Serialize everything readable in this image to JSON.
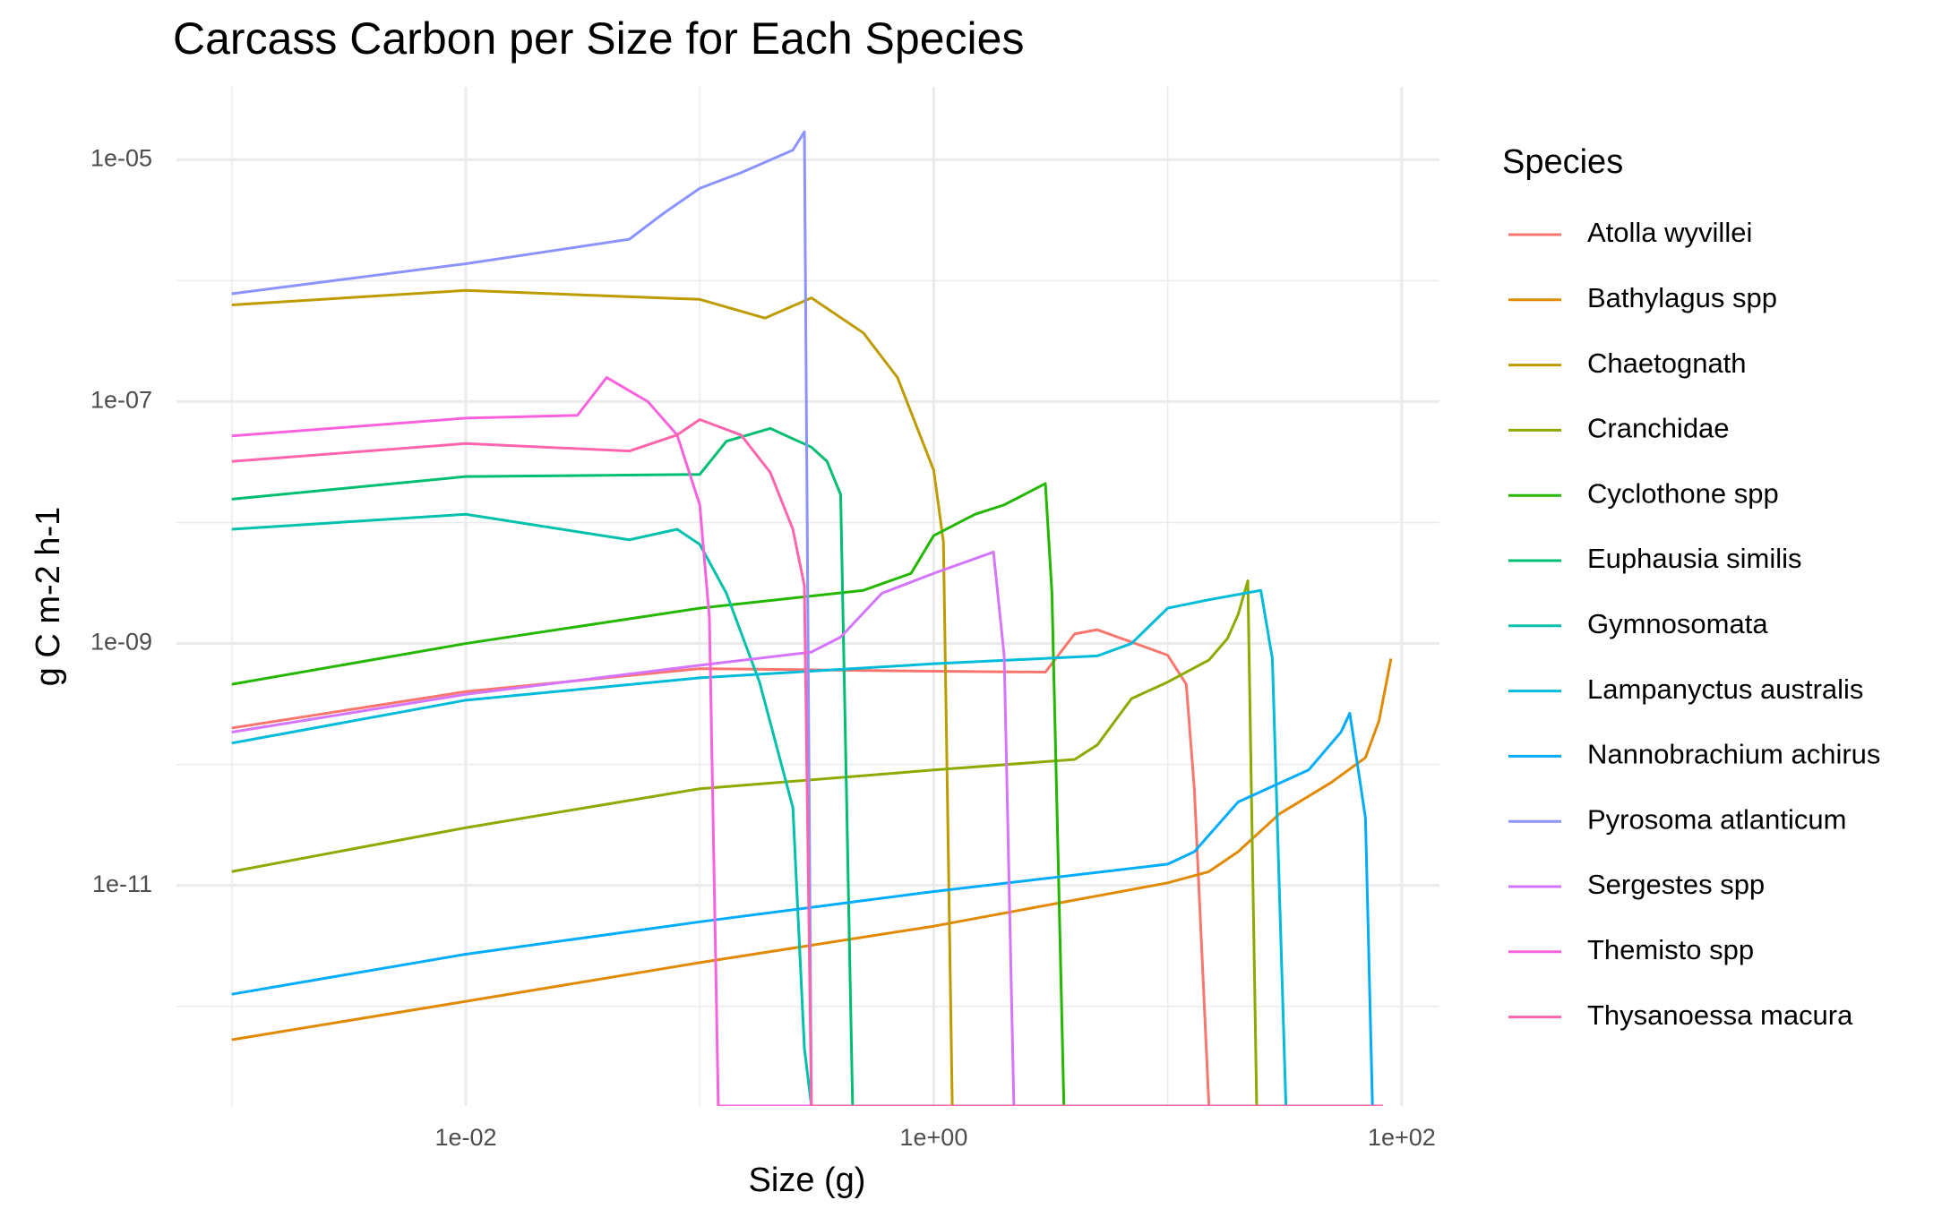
{
  "chart_data": {
    "type": "line",
    "title": "Carcass Carbon per Size for Each Species",
    "x_label": "Size (g)",
    "y_label": "g C m-2 h-1",
    "legend_title": "Species",
    "x_log": true,
    "y_log": true,
    "grid": true,
    "legend_position": "right",
    "xlim": [
      0.00058,
      145
    ],
    "ylim": [
      1.5e-13,
      4e-05
    ],
    "xticks": [
      {
        "value": 0.01,
        "label": "1e-02"
      },
      {
        "value": 1,
        "label": "1e+00"
      },
      {
        "value": 100,
        "label": "1e+02"
      }
    ],
    "yticks": [
      {
        "value": 1e-11,
        "label": "1e-11"
      },
      {
        "value": 1e-09,
        "label": "1e-09"
      },
      {
        "value": 1e-07,
        "label": "1e-07"
      },
      {
        "value": 1e-05,
        "label": "1e-05"
      }
    ],
    "x_minor_ticks": [
      0.001,
      0.1,
      10
    ],
    "y_minor_ticks": [
      1e-12,
      1e-10,
      1e-08,
      1e-06
    ],
    "series": [
      {
        "name": "Atolla wyvillei",
        "color": "#F8766D",
        "x": [
          0.001,
          0.01,
          0.1,
          1,
          3,
          4,
          5,
          10,
          12,
          13,
          15,
          83
        ],
        "values": [
          2e-10,
          4e-10,
          6.2e-10,
          5.9e-10,
          5.8e-10,
          1.2e-09,
          1.3e-09,
          8e-10,
          4.6e-10,
          6.2e-11,
          1.5e-13,
          1.5e-13
        ]
      },
      {
        "name": "Bathylagus spp",
        "color": "#E18A00",
        "x": [
          0.001,
          0.01,
          0.1,
          1,
          10,
          15,
          20,
          30,
          50,
          70,
          80,
          90
        ],
        "values": [
          5.3e-13,
          1.1e-12,
          2.3e-12,
          4.6e-12,
          1.05e-11,
          1.3e-11,
          1.9e-11,
          3.9e-11,
          7.1e-11,
          1.14e-10,
          2.3e-10,
          7.5e-10
        ]
      },
      {
        "name": "Chaetognath",
        "color": "#BE9C00",
        "x": [
          0.001,
          0.01,
          0.1,
          0.19,
          0.3,
          0.5,
          0.7,
          1,
          1.1,
          1.2,
          83
        ],
        "values": [
          6.3e-07,
          8.3e-07,
          7e-07,
          4.9e-07,
          7.2e-07,
          3.7e-07,
          1.58e-07,
          2.7e-08,
          6.9e-09,
          1.5e-13,
          1.5e-13
        ]
      },
      {
        "name": "Cranchidae",
        "color": "#8CAB00",
        "x": [
          0.001,
          0.01,
          0.1,
          1,
          4,
          5,
          7,
          10,
          15,
          18,
          20,
          22,
          24,
          83
        ],
        "values": [
          1.3e-11,
          3e-11,
          6.3e-11,
          9e-11,
          1.1e-10,
          1.45e-10,
          3.5e-10,
          4.8e-10,
          7.3e-10,
          1.1e-09,
          1.74e-09,
          3.3e-09,
          1.5e-13,
          1.5e-13
        ]
      },
      {
        "name": "Cyclothone spp",
        "color": "#24B700",
        "x": [
          0.001,
          0.01,
          0.1,
          0.5,
          0.8,
          1,
          1.5,
          2,
          3,
          3.2,
          3.6,
          83
        ],
        "values": [
          4.6e-10,
          1e-09,
          1.96e-09,
          2.75e-09,
          3.8e-09,
          7.8e-09,
          1.17e-08,
          1.4e-08,
          2.1e-08,
          2.6e-09,
          1.5e-13,
          1.5e-13
        ]
      },
      {
        "name": "Euphausia similis",
        "color": "#00BE70",
        "x": [
          0.001,
          0.01,
          0.1,
          0.13,
          0.2,
          0.3,
          0.35,
          0.4,
          0.45,
          83
        ],
        "values": [
          1.56e-08,
          2.4e-08,
          2.5e-08,
          4.7e-08,
          6e-08,
          4.2e-08,
          3.2e-08,
          1.7e-08,
          1.5e-13,
          1.5e-13
        ]
      },
      {
        "name": "Gymnosomata",
        "color": "#00C1AB",
        "x": [
          0.001,
          0.01,
          0.05,
          0.08,
          0.1,
          0.13,
          0.18,
          0.25,
          0.28,
          0.3,
          83
        ],
        "values": [
          8.8e-09,
          1.17e-08,
          7.2e-09,
          8.8e-09,
          6.6e-09,
          2.6e-09,
          4.8e-10,
          4.4e-11,
          4.5e-13,
          1.5e-13,
          1.5e-13
        ]
      },
      {
        "name": "Lampanyctus australis",
        "color": "#00BBDA",
        "x": [
          0.001,
          0.01,
          0.1,
          1,
          5,
          7,
          10,
          15,
          25,
          28,
          32,
          83
        ],
        "values": [
          1.5e-10,
          3.4e-10,
          5.2e-10,
          6.8e-10,
          7.9e-10,
          1e-09,
          1.96e-09,
          2.3e-09,
          2.75e-09,
          7.5e-10,
          1.5e-13,
          1.5e-13
        ]
      },
      {
        "name": "Nannobrachium achirus",
        "color": "#00ACFC",
        "x": [
          0.001,
          0.01,
          0.1,
          1,
          10,
          13,
          20,
          40,
          55,
          60,
          70,
          75,
          83
        ],
        "values": [
          1.26e-12,
          2.7e-12,
          5e-12,
          8.9e-12,
          1.5e-11,
          1.9e-11,
          4.9e-11,
          9e-11,
          1.85e-10,
          2.65e-10,
          3.6e-11,
          1.5e-13,
          1.5e-13
        ]
      },
      {
        "name": "Pyrosoma atlanticum",
        "color": "#8B93FF",
        "x": [
          0.001,
          0.01,
          0.05,
          0.07,
          0.1,
          0.15,
          0.25,
          0.28,
          0.3,
          83
        ],
        "values": [
          7.8e-07,
          1.38e-06,
          2.2e-06,
          3.6e-06,
          5.8e-06,
          7.8e-06,
          1.2e-05,
          1.7e-05,
          1.5e-13,
          1.5e-13
        ]
      },
      {
        "name": "Sergestes spp",
        "color": "#D575FE",
        "x": [
          0.001,
          0.01,
          0.1,
          0.3,
          0.4,
          0.6,
          1,
          1.8,
          2,
          2.2,
          83
        ],
        "values": [
          1.85e-10,
          3.8e-10,
          6.6e-10,
          8.5e-10,
          1.13e-09,
          2.6e-09,
          3.8e-09,
          5.7e-09,
          7.9e-10,
          1.5e-13,
          1.5e-13
        ]
      },
      {
        "name": "Themisto spp",
        "color": "#F962DD",
        "x": [
          0.001,
          0.01,
          0.03,
          0.04,
          0.06,
          0.08,
          0.1,
          0.11,
          0.12,
          83
        ],
        "values": [
          5.2e-08,
          7.3e-08,
          7.7e-08,
          1.58e-07,
          1e-07,
          5.3e-08,
          1.4e-08,
          1.6e-09,
          1.5e-13,
          1.5e-13
        ]
      },
      {
        "name": "Thysanoessa macura",
        "color": "#FF65AC",
        "x": [
          0.001,
          0.01,
          0.05,
          0.08,
          0.1,
          0.15,
          0.2,
          0.25,
          0.28,
          0.3,
          83
        ],
        "values": [
          3.2e-08,
          4.5e-08,
          3.9e-08,
          5.3e-08,
          7.1e-08,
          5.3e-08,
          2.6e-08,
          8.8e-09,
          3e-09,
          1.5e-13,
          1.5e-13
        ]
      }
    ]
  }
}
